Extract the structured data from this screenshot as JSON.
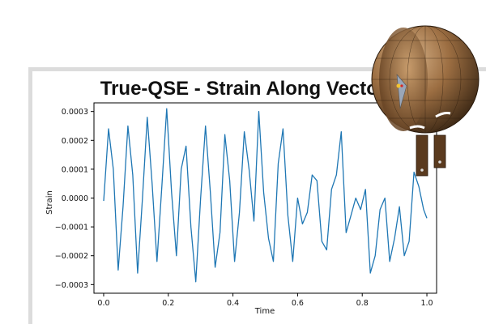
{
  "chart_data": {
    "type": "line",
    "title": "True-QSE - Strain Along Vector",
    "xlabel": "Time",
    "ylabel": "Strain",
    "xlim": [
      -0.03,
      1.03
    ],
    "ylim": [
      -0.00033,
      0.00033
    ],
    "x_ticks": [
      0.0,
      0.2,
      0.4,
      0.6,
      0.8,
      1.0
    ],
    "x_tick_labels": [
      "0.0",
      "0.2",
      "0.4",
      "0.6",
      "0.8",
      "1.0"
    ],
    "y_ticks": [
      -0.0003,
      -0.0002,
      -0.0001,
      0.0,
      0.0001,
      0.0002,
      0.0003
    ],
    "y_tick_labels": [
      "−0.0003",
      "−0.0002",
      "−0.0001",
      "0.0000",
      "0.0001",
      "0.0002",
      "0.0003"
    ],
    "grid": false,
    "series": [
      {
        "color": "#1f77b4",
        "x": [
          0.0,
          0.015,
          0.03,
          0.045,
          0.06,
          0.075,
          0.09,
          0.105,
          0.12,
          0.135,
          0.15,
          0.165,
          0.18,
          0.195,
          0.21,
          0.225,
          0.24,
          0.255,
          0.27,
          0.285,
          0.3,
          0.315,
          0.33,
          0.345,
          0.36,
          0.375,
          0.39,
          0.405,
          0.42,
          0.435,
          0.45,
          0.465,
          0.48,
          0.495,
          0.51,
          0.525,
          0.54,
          0.555,
          0.57,
          0.585,
          0.6,
          0.615,
          0.63,
          0.645,
          0.66,
          0.675,
          0.69,
          0.705,
          0.72,
          0.735,
          0.75,
          0.765,
          0.78,
          0.795,
          0.81,
          0.825,
          0.84,
          0.855,
          0.87,
          0.885,
          0.9,
          0.915,
          0.93,
          0.945,
          0.96,
          0.975,
          0.99,
          1.0
        ],
        "values": [
          -1e-05,
          0.00024,
          0.0001,
          -0.00025,
          -3e-05,
          0.00025,
          8e-05,
          -0.00026,
          0.0,
          0.00028,
          5e-05,
          -0.00022,
          4e-05,
          0.00031,
          2e-05,
          -0.0002,
          0.0001,
          0.00018,
          -0.0001,
          -0.00029,
          0.0,
          0.00025,
          2e-05,
          -0.00024,
          -0.00012,
          0.00022,
          6e-05,
          -0.00022,
          -5e-05,
          0.00023,
          0.0001,
          -8e-05,
          0.0003,
          2e-05,
          -0.00014,
          -0.00022,
          0.00012,
          0.00024,
          -6e-05,
          -0.00022,
          0.0,
          -9e-05,
          -5e-05,
          8e-05,
          6e-05,
          -0.00015,
          -0.00018,
          3e-05,
          8e-05,
          0.00023,
          -0.00012,
          -6e-05,
          0.0,
          -4e-05,
          3e-05,
          -0.00026,
          -0.0002,
          -4e-05,
          0.0,
          -0.00022,
          -0.00014,
          -3e-05,
          -0.0002,
          -0.00015,
          9e-05,
          4e-05,
          -4e-05,
          -7e-05
        ]
      }
    ]
  }
}
